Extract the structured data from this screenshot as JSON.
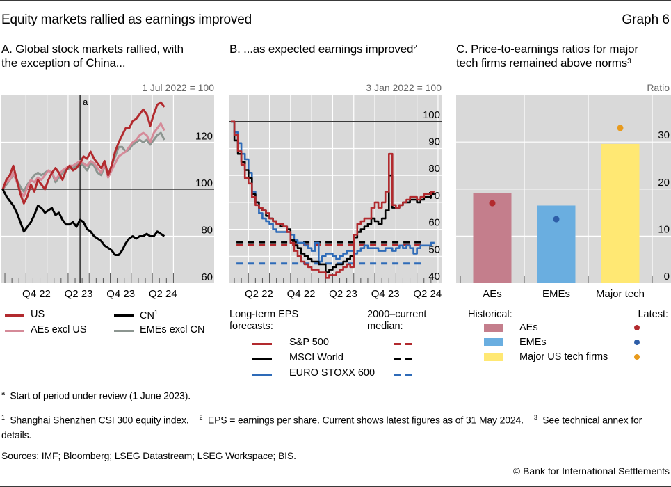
{
  "header": {
    "title": "Equity markets rallied as earnings improved",
    "graph_number": "Graph 6"
  },
  "panels": {
    "a": {
      "title_line1": "A. Global stock markets rallied, with",
      "title_line2": "the exception of China...",
      "unit": "1 Jul 2022 = 100",
      "event_marker": "a"
    },
    "b": {
      "title": "B. ...as expected earnings improved",
      "title_sup": "2",
      "unit": "3 Jan 2022 = 100"
    },
    "c": {
      "title_line1": "C. Price-to-earnings ratios for major",
      "title_line2": "tech firms remained above norms",
      "title_sup": "3",
      "unit": "Ratio"
    }
  },
  "legend_a": [
    {
      "label": "US",
      "sup": "",
      "color": "#b22a2e"
    },
    {
      "label": "AEs excl US",
      "sup": "",
      "color": "#d58a98"
    },
    {
      "label": "CN",
      "sup": "1",
      "color": "#000000"
    },
    {
      "label": "EMEs excl CN",
      "sup": "",
      "color": "#8c9590"
    }
  ],
  "legend_b": {
    "heading_left_1": "Long-term EPS",
    "heading_left_2": "forecasts:",
    "heading_right_1": "2000–current",
    "heading_right_2": "median:",
    "items": [
      {
        "label": "S&P 500",
        "color": "#b22a2e"
      },
      {
        "label": "MSCI World",
        "color": "#000000"
      },
      {
        "label": "EURO STOXX 600",
        "color": "#2e6bb8"
      }
    ]
  },
  "legend_c": {
    "heading_left": "Historical:",
    "heading_right": "Latest:",
    "items": [
      {
        "label": "AEs",
        "bar_color": "#c47e8c",
        "dot_color": "#b22a2e"
      },
      {
        "label": "EMEs",
        "bar_color": "#6aaee0",
        "dot_color": "#2e5ea8"
      },
      {
        "label": "Major US tech firms",
        "bar_color": "#ffe873",
        "dot_color": "#e89b1e"
      }
    ]
  },
  "footnotes": {
    "a": "Start of period under review (1 June 2023).",
    "n1": "Shanghai Shenzhen CSI 300 equity index.",
    "n2": "EPS = earnings per share. Current shows latest figures as of 31 May 2024.",
    "n3": "See technical annex for details.",
    "sources": "Sources: IMF; Bloomberg; LSEG Datastream; LSEG Workspace; BIS.",
    "copyright": "© Bank for International Settlements"
  },
  "chart_data": [
    {
      "type": "line",
      "title": "A. Global stock markets rallied, with the exception of China...",
      "ylabel": "1 Jul 2022 = 100",
      "x_tick_labels": [
        "Q4 22",
        "Q2 23",
        "Q4 23",
        "Q2 24"
      ],
      "x_range": [
        "2022-07",
        "2024-06"
      ],
      "ylim": [
        60,
        140
      ],
      "y_ticks": [
        60,
        80,
        100,
        120
      ],
      "reference_line": 100,
      "event_line": {
        "label": "a",
        "date": "2023-06-01"
      },
      "grid": true,
      "x_months": [
        0,
        0.5,
        1,
        1.5,
        2,
        2.5,
        3,
        3.5,
        4,
        4.5,
        5,
        5.5,
        6,
        6.5,
        7,
        7.5,
        8,
        8.5,
        9,
        9.5,
        10,
        10.5,
        11,
        11.5,
        12,
        12.5,
        13,
        13.5,
        14,
        14.5,
        15,
        15.5,
        16,
        16.5,
        17,
        17.5,
        18,
        18.5,
        19,
        19.5,
        20,
        20.5,
        21,
        21.5,
        22,
        22.5,
        23
      ],
      "series": [
        {
          "name": "US",
          "color": "#b22a2e",
          "values": [
            100,
            104,
            106,
            110,
            104,
            98,
            94,
            97,
            102,
            99,
            104,
            102,
            100,
            104,
            107,
            109,
            107,
            104,
            108,
            110,
            108,
            109,
            111,
            114,
            113,
            116,
            113,
            111,
            109,
            112,
            106,
            110,
            116,
            120,
            123,
            126,
            126,
            129,
            130,
            132,
            134,
            132,
            127,
            132,
            136,
            137,
            135
          ]
        },
        {
          "name": "AEs excl US",
          "color": "#d58a98",
          "values": [
            100,
            103,
            104,
            107,
            103,
            99,
            97,
            101,
            104,
            103,
            105,
            104,
            106,
            108,
            107,
            104,
            106,
            108,
            109,
            110,
            110,
            111,
            112,
            111,
            110,
            112,
            111,
            109,
            107,
            111,
            105,
            108,
            111,
            114,
            115,
            116,
            118,
            120,
            121,
            123,
            124,
            123,
            120,
            124,
            126,
            128,
            125
          ]
        },
        {
          "name": "CN",
          "color": "#000000",
          "values": [
            100,
            97,
            95,
            93,
            90,
            86,
            82,
            84,
            86,
            89,
            93,
            92,
            90,
            91,
            92,
            89,
            90,
            87,
            85,
            85,
            86,
            84,
            87,
            86,
            83,
            82,
            80,
            79,
            78,
            76,
            75,
            74,
            72,
            72,
            74,
            77,
            79,
            80,
            79,
            80,
            80,
            81,
            80,
            80,
            82,
            81,
            80
          ]
        },
        {
          "name": "EMEs excl CN",
          "color": "#8c9590",
          "values": [
            100,
            102,
            104,
            106,
            104,
            101,
            99,
            102,
            104,
            106,
            107,
            106,
            107,
            108,
            107,
            103,
            105,
            107,
            108,
            109,
            109,
            110,
            111,
            110,
            108,
            111,
            110,
            107,
            106,
            110,
            106,
            110,
            114,
            118,
            118,
            116,
            117,
            119,
            120,
            121,
            120,
            121,
            119,
            121,
            123,
            124,
            121
          ]
        }
      ]
    },
    {
      "type": "line",
      "title": "B. ...as expected earnings improved",
      "ylabel": "3 Jan 2022 = 100",
      "x_tick_labels": [
        "Q2 22",
        "Q4 22",
        "Q2 23",
        "Q4 23",
        "Q2 24"
      ],
      "x_range": [
        "2022-01",
        "2024-06"
      ],
      "ylim": [
        40,
        103
      ],
      "y_ticks": [
        40,
        50,
        60,
        70,
        80,
        90,
        100
      ],
      "reference_line": 100,
      "grid": true,
      "x_months": [
        0,
        0.5,
        1,
        1.5,
        2,
        2.5,
        3,
        3.5,
        4,
        4.5,
        5,
        5.5,
        6,
        6.5,
        7,
        7.5,
        8,
        8.5,
        9,
        9.5,
        10,
        10.5,
        11,
        11.5,
        12,
        12.5,
        13,
        13.5,
        14,
        14.5,
        15,
        15.5,
        16,
        16.5,
        17,
        17.5,
        18,
        18.5,
        19,
        19.5,
        20,
        20.5,
        21,
        21.5,
        22,
        22.5,
        23,
        23.5,
        24,
        24.5,
        25,
        25.5,
        26,
        26.5,
        27,
        27.5,
        28,
        28.5,
        29
      ],
      "series": [
        {
          "name": "S&P 500",
          "color": "#b22a2e",
          "values": [
            100,
            95,
            89,
            84,
            79,
            77,
            72,
            69,
            68,
            67,
            66,
            64,
            63,
            62,
            62,
            61,
            59,
            55,
            52,
            50,
            48,
            47,
            46,
            45,
            45,
            44,
            44,
            42,
            43,
            43,
            44,
            45,
            46,
            47,
            46,
            58,
            62,
            63,
            64,
            64,
            68,
            70,
            68,
            70,
            74,
            88,
            69,
            68,
            69,
            70,
            71,
            72,
            72,
            71,
            72,
            73,
            73,
            74,
            74
          ]
        },
        {
          "name": "MSCI World",
          "color": "#000000",
          "values": [
            100,
            93,
            88,
            85,
            82,
            79,
            73,
            70,
            68,
            67,
            65,
            64,
            63,
            62,
            61,
            61,
            60,
            56,
            54,
            53,
            51,
            50,
            49,
            48,
            48,
            47,
            47,
            44,
            45,
            46,
            47,
            47,
            48,
            49,
            50,
            57,
            59,
            60,
            61,
            62,
            64,
            63,
            62,
            64,
            67,
            80,
            68,
            68,
            69,
            70,
            70,
            71,
            71,
            70,
            71,
            72,
            72,
            73,
            73
          ]
        },
        {
          "name": "EURO STOXX 600",
          "color": "#2e6bb8",
          "values": [
            100,
            96,
            92,
            88,
            86,
            81,
            74,
            70,
            66,
            64,
            63,
            62,
            60,
            59,
            59,
            59,
            59,
            58,
            56,
            55,
            55,
            54,
            53,
            52,
            55,
            48,
            50,
            51,
            51,
            50,
            49,
            50,
            51,
            52,
            52,
            51,
            52,
            53,
            54,
            53,
            53,
            53,
            52,
            52,
            53,
            53,
            52,
            53,
            54,
            53,
            54,
            53,
            51,
            53,
            54,
            54,
            54,
            55,
            55
          ]
        }
      ],
      "median_lines": [
        {
          "name": "S&P 500 median",
          "color": "#b22a2e",
          "value": 54.2
        },
        {
          "name": "MSCI World median",
          "color": "#000000",
          "value": 55.2
        },
        {
          "name": "EURO STOXX 600 median",
          "color": "#2e6bb8",
          "value": 47.3
        }
      ]
    },
    {
      "type": "bar",
      "title": "C. Price-to-earnings ratios for major tech firms remained above norms",
      "ylabel": "Ratio",
      "categories": [
        "AEs",
        "EMEs",
        "Major tech"
      ],
      "ylim": [
        0,
        40
      ],
      "y_ticks": [
        0,
        10,
        20,
        30
      ],
      "grid": true,
      "series": [
        {
          "name": "Historical",
          "values": [
            19.1,
            16.5,
            29.6
          ],
          "colors": [
            "#c47e8c",
            "#6aaee0",
            "#ffe873"
          ]
        },
        {
          "name": "Latest",
          "values": [
            17.0,
            13.6,
            33.0
          ],
          "colors": [
            "#b22a2e",
            "#2e5ea8",
            "#e89b1e"
          ],
          "marker": "dot"
        }
      ]
    }
  ]
}
